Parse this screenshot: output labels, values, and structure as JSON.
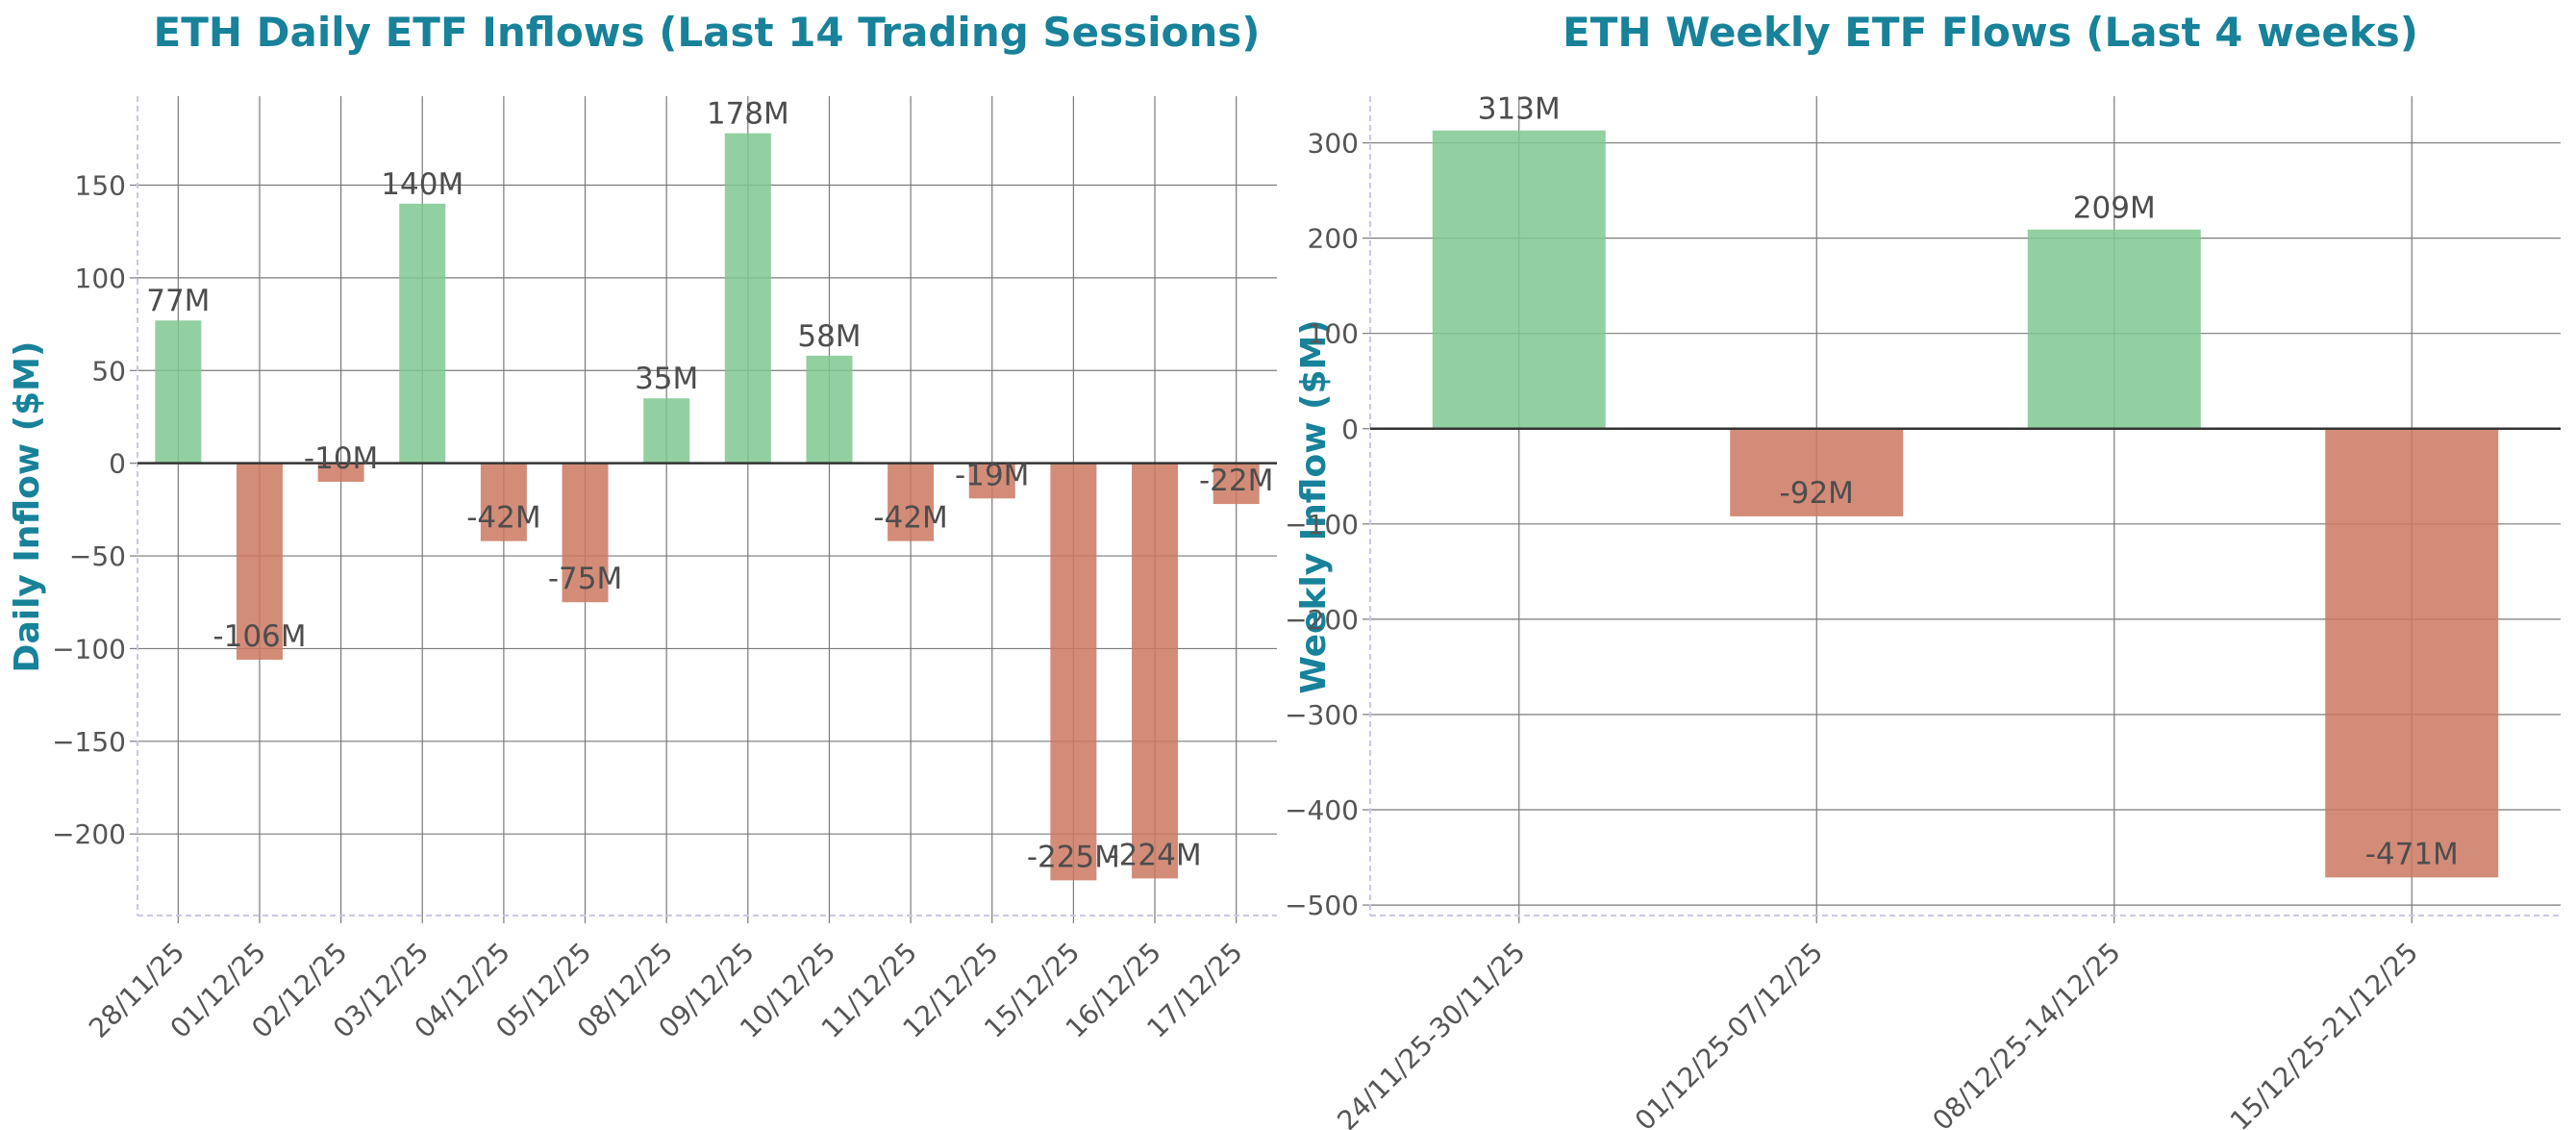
{
  "colors": {
    "title": "#17829a",
    "positive": "#7fc791",
    "negative": "#cb7860",
    "grid": "#7a7a7a",
    "zero": "#333333",
    "tick_text": "#555555",
    "label_text": "#4d4d4d"
  },
  "chart_data": [
    {
      "type": "bar",
      "title": "ETH Daily ETF Inflows (Last 14 Trading Sessions)",
      "xlabel": "",
      "ylabel": "Daily Inflow ($M)",
      "categories": [
        "28/11/25",
        "01/12/25",
        "02/12/25",
        "03/12/25",
        "04/12/25",
        "05/12/25",
        "08/12/25",
        "09/12/25",
        "10/12/25",
        "11/12/25",
        "12/12/25",
        "15/12/25",
        "16/12/25",
        "17/12/25"
      ],
      "values": [
        77,
        -106,
        -10,
        140,
        -42,
        -75,
        35,
        178,
        58,
        -42,
        -19,
        -225,
        -224,
        -22
      ],
      "data_labels": [
        "77M",
        "-106M",
        "-10M",
        "140M",
        "-42M",
        "-75M",
        "35M",
        "178M",
        "58M",
        "-42M",
        "-19M",
        "-225M",
        "-224M",
        "-22M"
      ],
      "yticks": [
        150,
        100,
        50,
        0,
        -50,
        -100,
        -150,
        -200
      ],
      "ytick_labels": [
        "150",
        "100",
        "50",
        "0",
        "−50",
        "−100",
        "−150",
        "−200"
      ],
      "ylim": [
        -244,
        198
      ],
      "grid": true,
      "legend": "none"
    },
    {
      "type": "bar",
      "title": "ETH Weekly ETF Flows (Last 4 weeks)",
      "xlabel": "",
      "ylabel": "Weekly Inflow ($M)",
      "categories": [
        "24/11/25-30/11/25",
        "01/12/25-07/12/25",
        "08/12/25-14/12/25",
        "15/12/25-21/12/25"
      ],
      "values": [
        313,
        -92,
        209,
        -471
      ],
      "data_labels": [
        "313M",
        "-92M",
        "209M",
        "-471M"
      ],
      "yticks": [
        300,
        200,
        100,
        0,
        -100,
        -200,
        -300,
        -400,
        -500
      ],
      "ytick_labels": [
        "300",
        "200",
        "100",
        "0",
        "−100",
        "−200",
        "−300",
        "−400",
        "−500"
      ],
      "ylim": [
        -511,
        349
      ],
      "grid": true,
      "legend": "none"
    }
  ]
}
